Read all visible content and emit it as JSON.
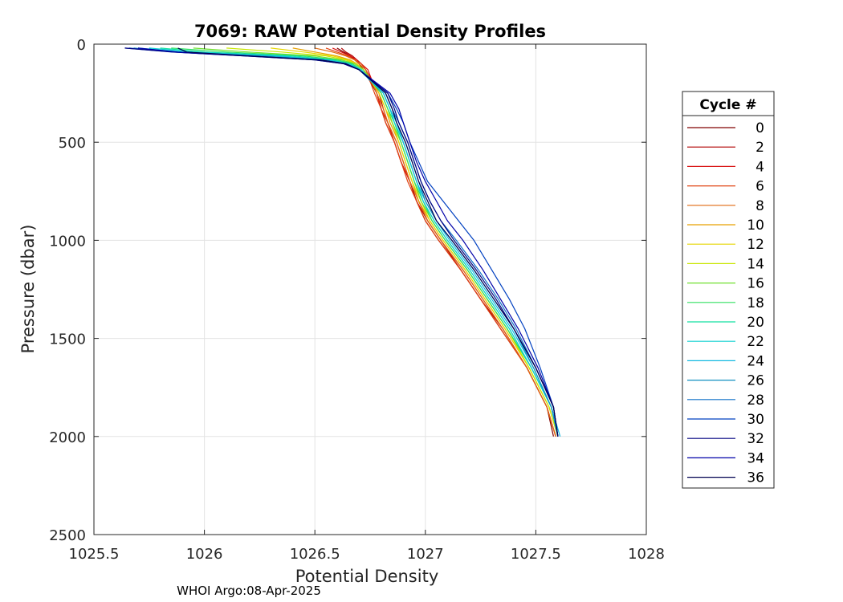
{
  "chart_data": {
    "type": "line",
    "title": "7069: RAW Potential Density Profiles",
    "xlabel": "Potential Density",
    "ylabel": "Pressure (dbar)",
    "xlim": [
      1025.5,
      1028
    ],
    "ylim": [
      0,
      2500
    ],
    "y_reversed": true,
    "grid": true,
    "x_ticks": [
      "1025.5",
      "1026",
      "1026.5",
      "1027",
      "1027.5",
      "1028"
    ],
    "y_ticks": [
      "0",
      "500",
      "1000",
      "1500",
      "2000",
      "2500"
    ],
    "legend": {
      "title": "Cycle #",
      "placement": "outside-right",
      "entries": [
        "0",
        "2",
        "4",
        "6",
        "8",
        "10",
        "12",
        "14",
        "16",
        "18",
        "20",
        "22",
        "24",
        "26",
        "28",
        "30",
        "32",
        "34",
        "36"
      ]
    },
    "series": [
      {
        "name": "0",
        "color": "#800000",
        "x": [
          1026.6,
          1026.63,
          1026.66,
          1026.68,
          1026.7,
          1026.72,
          1026.78,
          1026.8,
          1026.82,
          1026.86,
          1026.89,
          1026.93,
          1026.96,
          1027.0,
          1027.06,
          1027.16,
          1027.25,
          1027.34,
          1027.46,
          1027.55,
          1027.58
        ],
        "y": [
          20,
          40,
          60,
          80,
          100,
          130,
          250,
          330,
          400,
          500,
          600,
          700,
          800,
          900,
          1000,
          1150,
          1300,
          1450,
          1650,
          1850,
          2000
        ]
      },
      {
        "name": "2",
        "color": "#b00000",
        "x": [
          1026.62,
          1026.64,
          1026.67,
          1026.69,
          1026.71,
          1026.73,
          1026.79,
          1026.81,
          1026.83,
          1026.87,
          1026.9,
          1026.93,
          1026.96,
          1027.01,
          1027.07,
          1027.16,
          1027.25,
          1027.35,
          1027.46,
          1027.55,
          1027.59
        ],
        "y": [
          20,
          40,
          60,
          80,
          100,
          130,
          250,
          330,
          400,
          500,
          600,
          700,
          800,
          900,
          1000,
          1150,
          1300,
          1450,
          1650,
          1850,
          2000
        ]
      },
      {
        "name": "4",
        "color": "#d81010",
        "x": [
          1026.58,
          1026.62,
          1026.66,
          1026.69,
          1026.71,
          1026.74,
          1026.78,
          1026.8,
          1026.83,
          1026.86,
          1026.89,
          1026.93,
          1026.97,
          1027.01,
          1027.07,
          1027.17,
          1027.26,
          1027.35,
          1027.46,
          1027.55,
          1027.59
        ],
        "y": [
          20,
          40,
          60,
          80,
          100,
          130,
          250,
          330,
          400,
          500,
          600,
          700,
          800,
          900,
          1000,
          1150,
          1300,
          1450,
          1650,
          1850,
          2000
        ]
      },
      {
        "name": "6",
        "color": "#e04010",
        "x": [
          1026.55,
          1026.6,
          1026.65,
          1026.68,
          1026.71,
          1026.73,
          1026.77,
          1026.8,
          1026.82,
          1026.86,
          1026.89,
          1026.92,
          1026.96,
          1027.0,
          1027.06,
          1027.16,
          1027.25,
          1027.34,
          1027.46,
          1027.55,
          1027.59
        ],
        "y": [
          20,
          40,
          60,
          80,
          100,
          130,
          250,
          330,
          400,
          500,
          600,
          700,
          800,
          900,
          1000,
          1150,
          1300,
          1450,
          1650,
          1850,
          2000
        ]
      },
      {
        "name": "8",
        "color": "#e06a10",
        "x": [
          1026.5,
          1026.58,
          1026.64,
          1026.68,
          1026.7,
          1026.73,
          1026.78,
          1026.81,
          1026.83,
          1026.87,
          1026.9,
          1026.93,
          1026.97,
          1027.01,
          1027.07,
          1027.17,
          1027.26,
          1027.35,
          1027.46,
          1027.55,
          1027.59
        ],
        "y": [
          20,
          40,
          60,
          80,
          100,
          130,
          250,
          330,
          400,
          500,
          600,
          700,
          800,
          900,
          1000,
          1150,
          1300,
          1450,
          1650,
          1850,
          2000
        ]
      },
      {
        "name": "10",
        "color": "#e6a000",
        "x": [
          1026.4,
          1026.5,
          1026.6,
          1026.66,
          1026.69,
          1026.72,
          1026.79,
          1026.82,
          1026.84,
          1026.88,
          1026.91,
          1026.94,
          1026.97,
          1027.02,
          1027.08,
          1027.18,
          1027.27,
          1027.36,
          1027.47,
          1027.56,
          1027.6
        ],
        "y": [
          20,
          40,
          60,
          80,
          100,
          130,
          250,
          330,
          400,
          500,
          600,
          700,
          800,
          900,
          1000,
          1150,
          1300,
          1450,
          1650,
          1850,
          2000
        ]
      },
      {
        "name": "12",
        "color": "#e6d600",
        "x": [
          1026.3,
          1026.45,
          1026.58,
          1026.65,
          1026.69,
          1026.72,
          1026.79,
          1026.82,
          1026.85,
          1026.88,
          1026.91,
          1026.94,
          1026.98,
          1027.02,
          1027.08,
          1027.18,
          1027.27,
          1027.36,
          1027.47,
          1027.56,
          1027.6
        ],
        "y": [
          20,
          40,
          60,
          80,
          100,
          130,
          250,
          330,
          400,
          500,
          600,
          700,
          800,
          900,
          1000,
          1150,
          1300,
          1450,
          1650,
          1850,
          2000
        ]
      },
      {
        "name": "14",
        "color": "#c8e600",
        "x": [
          1026.1,
          1026.35,
          1026.55,
          1026.64,
          1026.68,
          1026.72,
          1026.8,
          1026.83,
          1026.85,
          1026.89,
          1026.92,
          1026.95,
          1026.98,
          1027.03,
          1027.09,
          1027.19,
          1027.28,
          1027.37,
          1027.47,
          1027.56,
          1027.6
        ],
        "y": [
          20,
          40,
          60,
          80,
          100,
          130,
          250,
          330,
          400,
          500,
          600,
          700,
          800,
          900,
          1000,
          1150,
          1300,
          1450,
          1650,
          1850,
          2000
        ]
      },
      {
        "name": "16",
        "color": "#70e030",
        "x": [
          1025.95,
          1026.2,
          1026.5,
          1026.62,
          1026.68,
          1026.72,
          1026.8,
          1026.83,
          1026.85,
          1026.89,
          1026.92,
          1026.95,
          1026.98,
          1027.03,
          1027.09,
          1027.19,
          1027.28,
          1027.37,
          1027.48,
          1027.57,
          1027.6
        ],
        "y": [
          20,
          40,
          60,
          80,
          100,
          130,
          250,
          330,
          400,
          500,
          600,
          700,
          800,
          900,
          1000,
          1150,
          1300,
          1450,
          1650,
          1850,
          2000
        ]
      },
      {
        "name": "18",
        "color": "#30e060",
        "x": [
          1025.85,
          1026.1,
          1026.45,
          1026.6,
          1026.67,
          1026.71,
          1026.8,
          1026.83,
          1026.86,
          1026.89,
          1026.92,
          1026.95,
          1026.99,
          1027.03,
          1027.09,
          1027.19,
          1027.28,
          1027.37,
          1027.48,
          1027.57,
          1027.6
        ],
        "y": [
          20,
          40,
          60,
          80,
          100,
          130,
          250,
          330,
          400,
          500,
          600,
          700,
          800,
          900,
          1000,
          1150,
          1300,
          1450,
          1650,
          1850,
          2000
        ]
      },
      {
        "name": "20",
        "color": "#10e0a0",
        "x": [
          1025.8,
          1026.0,
          1026.4,
          1026.58,
          1026.66,
          1026.71,
          1026.81,
          1026.84,
          1026.86,
          1026.9,
          1026.93,
          1026.96,
          1026.99,
          1027.04,
          1027.1,
          1027.2,
          1027.29,
          1027.38,
          1027.48,
          1027.57,
          1027.6
        ],
        "y": [
          20,
          40,
          60,
          80,
          100,
          130,
          250,
          330,
          400,
          500,
          600,
          700,
          800,
          900,
          1000,
          1150,
          1300,
          1450,
          1650,
          1850,
          2000
        ]
      },
      {
        "name": "22",
        "color": "#10d0d0",
        "x": [
          1025.75,
          1025.95,
          1026.35,
          1026.56,
          1026.65,
          1026.71,
          1026.81,
          1026.84,
          1026.86,
          1026.9,
          1026.93,
          1026.96,
          1026.99,
          1027.04,
          1027.1,
          1027.2,
          1027.29,
          1027.38,
          1027.48,
          1027.57,
          1027.6
        ],
        "y": [
          20,
          40,
          60,
          80,
          100,
          130,
          250,
          330,
          400,
          500,
          600,
          700,
          800,
          900,
          1000,
          1150,
          1300,
          1450,
          1650,
          1850,
          2000
        ]
      },
      {
        "name": "24",
        "color": "#10b8e0",
        "x": [
          1025.7,
          1025.9,
          1026.3,
          1026.55,
          1026.65,
          1026.7,
          1026.81,
          1026.84,
          1026.87,
          1026.9,
          1026.93,
          1026.96,
          1027.0,
          1027.05,
          1027.11,
          1027.21,
          1027.3,
          1027.39,
          1027.49,
          1027.57,
          1027.61
        ],
        "y": [
          20,
          40,
          60,
          80,
          100,
          130,
          250,
          330,
          400,
          500,
          600,
          700,
          800,
          900,
          1000,
          1150,
          1300,
          1450,
          1650,
          1850,
          2000
        ]
      },
      {
        "name": "26",
        "color": "#1090c0",
        "x": [
          1025.68,
          1025.88,
          1026.25,
          1026.54,
          1026.64,
          1026.7,
          1026.82,
          1026.85,
          1026.87,
          1026.91,
          1026.94,
          1026.97,
          1027.0,
          1027.05,
          1027.12,
          1027.22,
          1027.31,
          1027.4,
          1027.49,
          1027.57,
          1027.6
        ],
        "y": [
          20,
          40,
          60,
          80,
          100,
          130,
          250,
          330,
          400,
          500,
          600,
          700,
          800,
          900,
          1000,
          1150,
          1300,
          1450,
          1650,
          1850,
          2000
        ]
      },
      {
        "name": "28",
        "color": "#1070c8",
        "x": [
          1025.66,
          1025.86,
          1026.2,
          1026.52,
          1026.64,
          1026.7,
          1026.82,
          1026.85,
          1026.88,
          1026.92,
          1026.95,
          1026.98,
          1027.02,
          1027.07,
          1027.14,
          1027.24,
          1027.33,
          1027.41,
          1027.5,
          1027.58,
          1027.6
        ],
        "y": [
          20,
          40,
          60,
          80,
          100,
          130,
          250,
          330,
          400,
          500,
          600,
          700,
          800,
          900,
          1000,
          1150,
          1300,
          1450,
          1650,
          1850,
          2000
        ]
      },
      {
        "name": "30",
        "color": "#0040c0",
        "x": [
          1025.64,
          1025.85,
          1026.18,
          1026.5,
          1026.63,
          1026.7,
          1026.83,
          1026.87,
          1026.9,
          1026.93,
          1026.97,
          1027.01,
          1027.08,
          1027.15,
          1027.22,
          1027.3,
          1027.38,
          1027.45,
          1027.52,
          1027.58,
          1027.6
        ],
        "y": [
          20,
          40,
          60,
          80,
          100,
          130,
          250,
          330,
          400,
          500,
          600,
          700,
          800,
          900,
          1000,
          1150,
          1300,
          1450,
          1650,
          1850,
          2000
        ]
      },
      {
        "name": "32",
        "color": "#000080",
        "x": [
          1025.64,
          1025.86,
          1026.18,
          1026.5,
          1026.63,
          1026.7,
          1026.83,
          1026.86,
          1026.88,
          1026.92,
          1026.95,
          1026.98,
          1027.02,
          1027.07,
          1027.13,
          1027.23,
          1027.32,
          1027.4,
          1027.5,
          1027.58,
          1027.6
        ],
        "y": [
          20,
          40,
          60,
          80,
          100,
          130,
          250,
          330,
          400,
          500,
          600,
          700,
          800,
          900,
          1000,
          1150,
          1300,
          1450,
          1650,
          1850,
          2000
        ]
      },
      {
        "name": "34",
        "color": "#0000a8",
        "x": [
          1025.7,
          1025.88,
          1026.2,
          1026.52,
          1026.64,
          1026.7,
          1026.84,
          1026.88,
          1026.9,
          1026.93,
          1026.96,
          1027.0,
          1027.05,
          1027.1,
          1027.17,
          1027.26,
          1027.34,
          1027.42,
          1027.51,
          1027.58,
          1027.6
        ],
        "y": [
          20,
          40,
          60,
          80,
          100,
          130,
          250,
          330,
          400,
          500,
          600,
          700,
          800,
          900,
          1000,
          1150,
          1300,
          1450,
          1650,
          1850,
          2000
        ]
      },
      {
        "name": "36",
        "color": "#000050",
        "x": [
          1025.88,
          1025.92,
          1026.2,
          1026.52,
          1026.64,
          1026.7,
          1026.82,
          1026.85,
          1026.87,
          1026.91,
          1026.94,
          1026.97,
          1027.01,
          1027.05,
          1027.12,
          1027.22,
          1027.31,
          1027.4,
          1027.5,
          1027.58,
          1027.6
        ],
        "y": [
          20,
          40,
          60,
          80,
          100,
          130,
          250,
          330,
          400,
          500,
          600,
          700,
          800,
          900,
          1000,
          1150,
          1300,
          1450,
          1650,
          1850,
          2000
        ]
      }
    ]
  },
  "footer": {
    "text": "WHOI Argo:08-Apr-2025"
  }
}
